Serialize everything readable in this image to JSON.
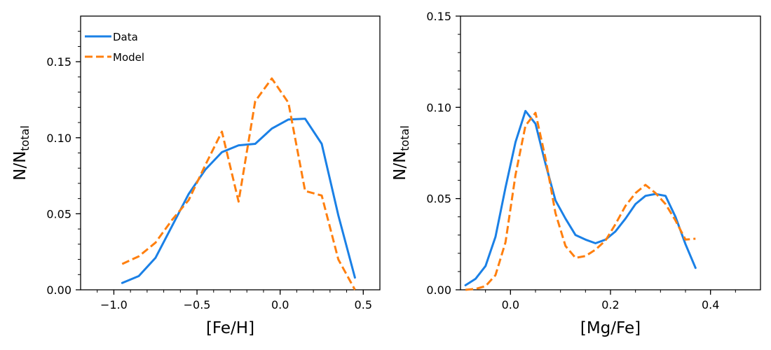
{
  "chart_data": [
    {
      "type": "line",
      "title": "",
      "xlabel": "[Fe/H]",
      "ylabel_main": "N/N",
      "ylabel_sub": "total",
      "xlim": [
        -1.2,
        0.6
      ],
      "ylim": [
        0,
        0.18
      ],
      "xticks": [
        -1.0,
        -0.5,
        0.0,
        0.5
      ],
      "xtick_labels": [
        "−1.0",
        "−0.5",
        "0.0",
        "0.5"
      ],
      "yticks": [
        0,
        0.05,
        0.1,
        0.15
      ],
      "ytick_labels": [
        "0.00",
        "0.05",
        "0.10",
        "0.15"
      ],
      "x_minor_step": 0.1,
      "y_minor_step": 0.01,
      "grid": false,
      "legend": {
        "location": "upper-left",
        "entries": [
          "Data",
          "Model"
        ]
      },
      "series": [
        {
          "name": "Data",
          "color": "#1a80e6",
          "style": "solid",
          "x": [
            -0.95,
            -0.85,
            -0.75,
            -0.65,
            -0.55,
            -0.45,
            -0.35,
            -0.25,
            -0.15,
            -0.05,
            0.05,
            0.15,
            0.25,
            0.35,
            0.45
          ],
          "y": [
            0.0045,
            0.009,
            0.021,
            0.042,
            0.063,
            0.079,
            0.0905,
            0.095,
            0.096,
            0.106,
            0.112,
            0.1125,
            0.096,
            0.049,
            0.008
          ]
        },
        {
          "name": "Model",
          "color": "#ff7f0e",
          "style": "dashed",
          "x": [
            -0.95,
            -0.85,
            -0.75,
            -0.65,
            -0.55,
            -0.45,
            -0.35,
            -0.25,
            -0.15,
            -0.05,
            0.05,
            0.15,
            0.25,
            0.35,
            0.45
          ],
          "y": [
            0.017,
            0.022,
            0.031,
            0.046,
            0.059,
            0.082,
            0.104,
            0.058,
            0.124,
            0.139,
            0.123,
            0.065,
            0.062,
            0.02,
            0.0
          ]
        }
      ]
    },
    {
      "type": "line",
      "title": "",
      "xlabel": "[Mg/Fe]",
      "ylabel_main": "N/N",
      "ylabel_sub": "total",
      "xlim": [
        -0.1,
        0.5
      ],
      "ylim": [
        0,
        0.15
      ],
      "xticks": [
        0.0,
        0.2,
        0.4
      ],
      "xtick_labels": [
        "0.0",
        "0.2",
        "0.4"
      ],
      "yticks": [
        0,
        0.05,
        0.1,
        0.15
      ],
      "ytick_labels": [
        "0.00",
        "0.05",
        "0.10",
        "0.15"
      ],
      "x_minor_step": 0.05,
      "y_minor_step": 0.01,
      "grid": false,
      "series": [
        {
          "name": "Data",
          "color": "#1a80e6",
          "style": "solid",
          "x": [
            -0.09,
            -0.07,
            -0.05,
            -0.03,
            -0.01,
            0.01,
            0.03,
            0.05,
            0.07,
            0.09,
            0.11,
            0.13,
            0.15,
            0.17,
            0.19,
            0.21,
            0.23,
            0.25,
            0.27,
            0.29,
            0.31,
            0.33,
            0.35,
            0.37
          ],
          "y": [
            0.0025,
            0.006,
            0.013,
            0.029,
            0.056,
            0.081,
            0.098,
            0.091,
            0.069,
            0.049,
            0.039,
            0.03,
            0.0275,
            0.0255,
            0.0275,
            0.032,
            0.039,
            0.047,
            0.0515,
            0.0525,
            0.0515,
            0.04,
            0.025,
            0.012
          ]
        },
        {
          "name": "Model",
          "color": "#ff7f0e",
          "style": "dashed",
          "x": [
            -0.09,
            -0.07,
            -0.05,
            -0.03,
            -0.01,
            0.01,
            0.03,
            0.05,
            0.07,
            0.09,
            0.11,
            0.13,
            0.15,
            0.17,
            0.19,
            0.21,
            0.23,
            0.25,
            0.27,
            0.29,
            0.31,
            0.33,
            0.35,
            0.37
          ],
          "y": [
            0.0,
            0.0005,
            0.002,
            0.008,
            0.026,
            0.063,
            0.09,
            0.097,
            0.072,
            0.042,
            0.024,
            0.0175,
            0.0185,
            0.022,
            0.027,
            0.036,
            0.046,
            0.053,
            0.0575,
            0.053,
            0.047,
            0.038,
            0.0275,
            0.028
          ]
        }
      ]
    }
  ]
}
